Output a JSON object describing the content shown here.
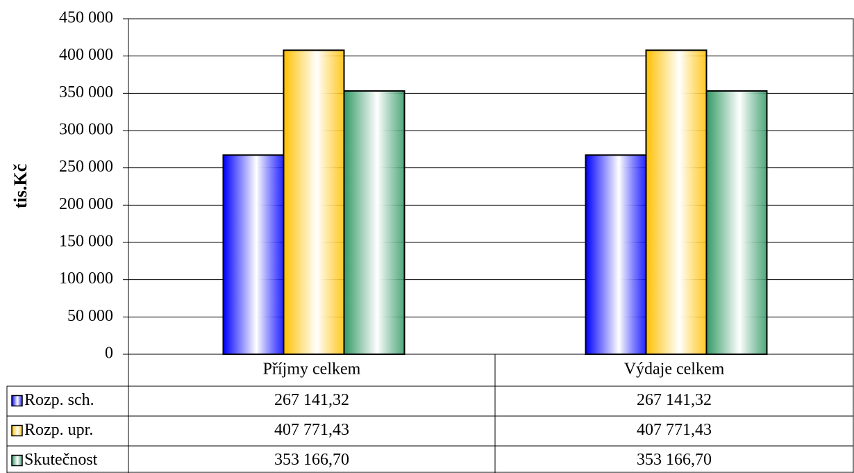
{
  "chart_data": {
    "type": "bar",
    "ylabel": "tis.Kč",
    "categories": [
      "Příjmy celkem",
      "Výdaje celkem"
    ],
    "series": [
      {
        "name": "Rozp. sch.",
        "color": "#0000ff",
        "values": [
          267141.32,
          267141.32
        ],
        "value_labels": [
          "267 141,32",
          "267 141,32"
        ]
      },
      {
        "name": "Rozp. upr.",
        "color": "#ffc000",
        "values": [
          407771.43,
          407771.43
        ],
        "value_labels": [
          "407 771,43",
          "407 771,43"
        ]
      },
      {
        "name": "Skutečnost",
        "color": "#339966",
        "values": [
          353166.7,
          353166.7
        ],
        "value_labels": [
          "353 166,70",
          "353 166,70"
        ]
      }
    ],
    "ylim": [
      0,
      450000
    ],
    "yticks": [
      0,
      {
        "value": 50000,
        "label": "50 000"
      },
      {
        "value": 100000,
        "label": "100 000"
      },
      {
        "value": 150000,
        "label": "150 000"
      },
      {
        "value": 200000,
        "label": "200 000"
      },
      {
        "value": 250000,
        "label": "250 000"
      },
      {
        "value": 300000,
        "label": "300 000"
      },
      {
        "value": 350000,
        "label": "350 000"
      },
      {
        "value": 400000,
        "label": "400 000"
      },
      {
        "value": 450000,
        "label": "450 000"
      }
    ],
    "grid": true
  }
}
